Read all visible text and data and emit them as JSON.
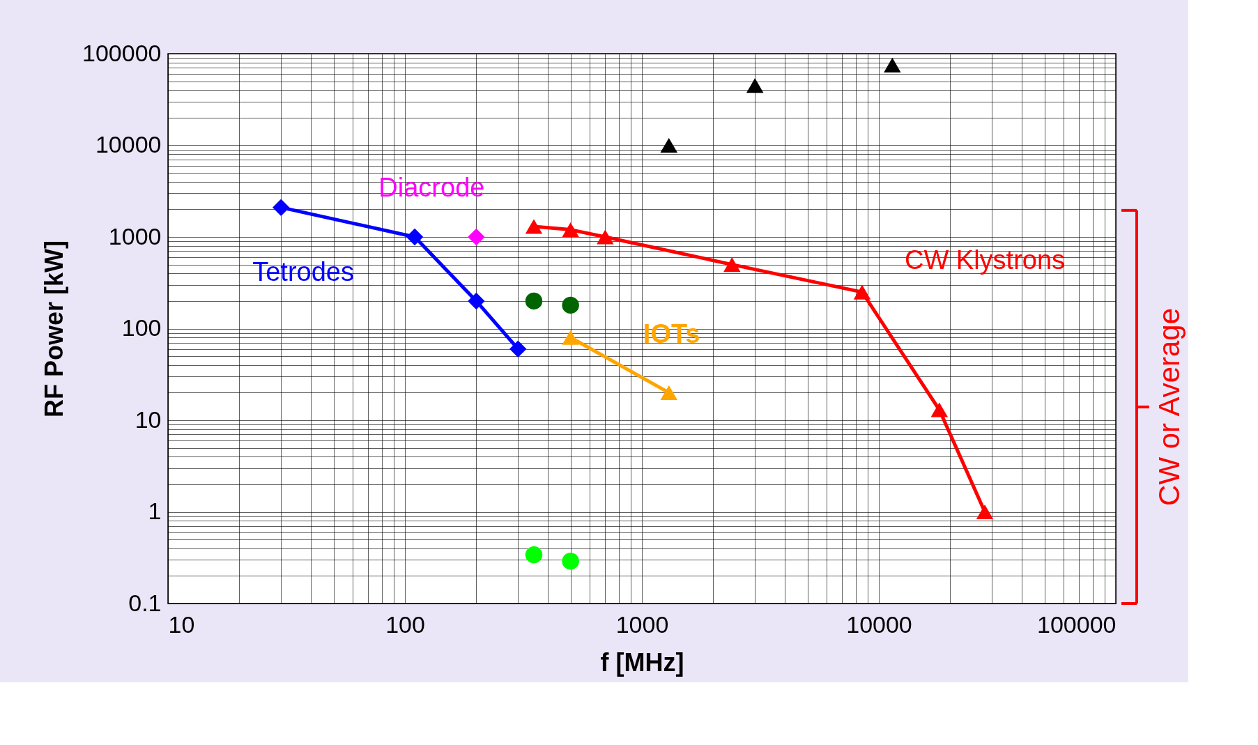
{
  "chart_data": {
    "type": "scatter",
    "xlabel": "f  [MHz]",
    "ylabel": "RF Power  [kW]",
    "log": "xy",
    "grid": true,
    "xlim": [
      10,
      100000
    ],
    "ylim": [
      0.1,
      100000
    ],
    "xticks": [
      10,
      100,
      1000,
      10000,
      100000
    ],
    "yticks": [
      0.1,
      1,
      10,
      100,
      1000,
      10000,
      100000
    ],
    "series": [
      {
        "name": "Tetrodes",
        "type": "line",
        "marker": "diamond",
        "color": "#0000ff",
        "x": [
          30,
          110,
          200,
          300
        ],
        "values": [
          2100,
          1000,
          200,
          60
        ]
      },
      {
        "name": "Diacrode",
        "marker": "diamond",
        "color": "#ff00ff",
        "x": [
          200
        ],
        "values": [
          1000
        ]
      },
      {
        "marker": "circle",
        "color": "#006400",
        "x": [
          350,
          500
        ],
        "values": [
          200,
          180
        ]
      },
      {
        "marker": "circle",
        "color": "#00ff00",
        "x": [
          350,
          500
        ],
        "values": [
          0.34,
          0.29
        ]
      },
      {
        "name": "IOTs",
        "type": "line",
        "marker": "triangle",
        "color": "#ffa500",
        "x": [
          500,
          1300
        ],
        "values": [
          80,
          20
        ]
      },
      {
        "name": "CW Klystrons",
        "type": "line",
        "marker": "triangle",
        "color": "#ff0000",
        "x": [
          350,
          500,
          700,
          2400,
          8500,
          18000,
          28000
        ],
        "values": [
          1300,
          1200,
          1000,
          500,
          250,
          13,
          1
        ]
      },
      {
        "marker": "triangle",
        "color": "#000000",
        "x": [
          1300,
          3000,
          11400
        ],
        "values": [
          10000,
          45000,
          75000
        ]
      }
    ],
    "annotations": [
      "CW or Average"
    ]
  }
}
